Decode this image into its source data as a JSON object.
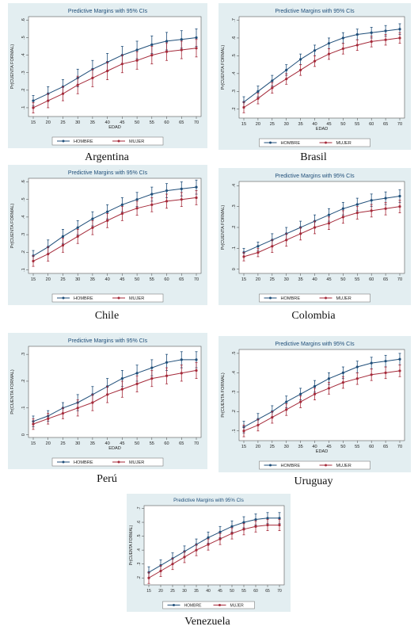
{
  "colors": {
    "frame_bg": "#e3eef1",
    "plot_bg": "#ffffff",
    "hombre": "#1f4e79",
    "mujer": "#a52a3a",
    "title": "#1f4e79"
  },
  "chart_data": [
    {
      "country": "Argentina",
      "type": "line",
      "title": "Predictive Margins with 95% CIs",
      "xlabel": "EDAD",
      "ylabel": "Pr(CUENTA FORMAL)",
      "x": [
        15,
        20,
        25,
        30,
        35,
        40,
        45,
        50,
        55,
        60,
        65,
        70
      ],
      "xticks": [
        "15",
        "20",
        "25",
        "30",
        "35",
        "40",
        "45",
        "50",
        "55",
        "60",
        "65",
        "70"
      ],
      "yticks": [
        0.1,
        0.2,
        0.3,
        0.4,
        0.5,
        0.6
      ],
      "ytick_labels": [
        ".1",
        ".2",
        ".3",
        ".4",
        ".5",
        ".6"
      ],
      "ylim": [
        0.05,
        0.62
      ],
      "series": [
        {
          "name": "HOMBRE",
          "values": [
            0.14,
            0.18,
            0.22,
            0.27,
            0.32,
            0.36,
            0.4,
            0.43,
            0.46,
            0.48,
            0.49,
            0.5
          ],
          "ci": [
            0.03,
            0.04,
            0.04,
            0.05,
            0.05,
            0.05,
            0.05,
            0.05,
            0.05,
            0.05,
            0.05,
            0.05
          ]
        },
        {
          "name": "MUJER",
          "values": [
            0.1,
            0.14,
            0.18,
            0.23,
            0.27,
            0.31,
            0.35,
            0.37,
            0.4,
            0.42,
            0.43,
            0.44
          ],
          "ci": [
            0.03,
            0.04,
            0.04,
            0.05,
            0.05,
            0.05,
            0.05,
            0.05,
            0.05,
            0.05,
            0.05,
            0.05
          ]
        }
      ],
      "legend": [
        "HOMBRE",
        "MUJER"
      ]
    },
    {
      "country": "Brasil",
      "type": "line",
      "title": "Predictive Margins with 95% CIs",
      "xlabel": "EDAD",
      "ylabel": "Pr(CUENTA FORMAL)",
      "x": [
        15,
        20,
        25,
        30,
        35,
        40,
        45,
        50,
        55,
        60,
        65,
        70
      ],
      "xticks": [
        "15",
        "20",
        "25",
        "30",
        "35",
        "40",
        "45",
        "50",
        "55",
        "60",
        "65",
        "70"
      ],
      "yticks": [
        0.2,
        0.3,
        0.4,
        0.5,
        0.6,
        0.7
      ],
      "ytick_labels": [
        ".2",
        ".3",
        ".4",
        ".5",
        ".6",
        ".7"
      ],
      "ylim": [
        0.15,
        0.72
      ],
      "series": [
        {
          "name": "HOMBRE",
          "values": [
            0.24,
            0.3,
            0.36,
            0.42,
            0.48,
            0.53,
            0.57,
            0.6,
            0.62,
            0.63,
            0.64,
            0.65
          ],
          "ci": [
            0.03,
            0.03,
            0.03,
            0.03,
            0.03,
            0.03,
            0.03,
            0.03,
            0.03,
            0.03,
            0.03,
            0.03
          ]
        },
        {
          "name": "MUJER",
          "values": [
            0.21,
            0.26,
            0.32,
            0.37,
            0.42,
            0.47,
            0.51,
            0.54,
            0.56,
            0.58,
            0.59,
            0.6
          ],
          "ci": [
            0.03,
            0.03,
            0.03,
            0.03,
            0.03,
            0.03,
            0.03,
            0.03,
            0.03,
            0.03,
            0.03,
            0.03
          ]
        }
      ],
      "legend": [
        "HOMBRE",
        "MUJER"
      ]
    },
    {
      "country": "Chile",
      "type": "line",
      "title": "Predictive Margins with 95% CIs",
      "xlabel": "",
      "ylabel": "Pr(CUENTA FORMAL)",
      "x": [
        15,
        20,
        25,
        30,
        35,
        40,
        45,
        50,
        55,
        60,
        65,
        70
      ],
      "xticks": [
        "15",
        "20",
        "25",
        "30",
        "35",
        "40",
        "45",
        "50",
        "55",
        "60",
        "65",
        "70"
      ],
      "yticks": [
        0.1,
        0.2,
        0.3,
        0.4,
        0.5,
        0.6
      ],
      "ytick_labels": [
        ".1",
        ".2",
        ".3",
        ".4",
        ".5",
        ".6"
      ],
      "ylim": [
        0.08,
        0.62
      ],
      "series": [
        {
          "name": "HOMBRE",
          "values": [
            0.18,
            0.23,
            0.29,
            0.34,
            0.39,
            0.43,
            0.47,
            0.5,
            0.53,
            0.55,
            0.56,
            0.57
          ],
          "ci": [
            0.03,
            0.04,
            0.04,
            0.04,
            0.04,
            0.04,
            0.04,
            0.04,
            0.04,
            0.04,
            0.04,
            0.04
          ]
        },
        {
          "name": "MUJER",
          "values": [
            0.15,
            0.19,
            0.24,
            0.29,
            0.34,
            0.38,
            0.42,
            0.45,
            0.47,
            0.49,
            0.5,
            0.51
          ],
          "ci": [
            0.03,
            0.04,
            0.04,
            0.04,
            0.04,
            0.04,
            0.04,
            0.04,
            0.04,
            0.04,
            0.04,
            0.04
          ]
        }
      ],
      "legend": [
        "HOMBRE",
        "MUJER"
      ]
    },
    {
      "country": "Colombia",
      "type": "line",
      "title": "Predictive Margins with 95% CIs",
      "xlabel": "",
      "ylabel": "Pr(CUENTA FORMAL)",
      "x": [
        15,
        20,
        25,
        30,
        35,
        40,
        45,
        50,
        55,
        60,
        65,
        70
      ],
      "xticks": [
        "15",
        "20",
        "25",
        "30",
        "35",
        "40",
        "45",
        "50",
        "55",
        "60",
        "65",
        "70"
      ],
      "yticks": [
        0.0,
        0.1,
        0.2,
        0.3,
        0.4
      ],
      "ytick_labels": [
        "0",
        ".1",
        ".2",
        ".3",
        ".4"
      ],
      "ylim": [
        -0.02,
        0.42
      ],
      "series": [
        {
          "name": "HOMBRE",
          "values": [
            0.08,
            0.11,
            0.14,
            0.17,
            0.2,
            0.23,
            0.26,
            0.29,
            0.31,
            0.33,
            0.34,
            0.35
          ],
          "ci": [
            0.02,
            0.02,
            0.03,
            0.03,
            0.03,
            0.03,
            0.03,
            0.03,
            0.03,
            0.03,
            0.03,
            0.03
          ]
        },
        {
          "name": "MUJER",
          "values": [
            0.06,
            0.08,
            0.11,
            0.14,
            0.17,
            0.2,
            0.22,
            0.25,
            0.27,
            0.28,
            0.29,
            0.3
          ],
          "ci": [
            0.02,
            0.02,
            0.03,
            0.03,
            0.03,
            0.03,
            0.03,
            0.03,
            0.03,
            0.03,
            0.03,
            0.03
          ]
        }
      ],
      "legend": [
        "HOMBRE",
        "MUJER"
      ]
    },
    {
      "country": "Perú",
      "type": "line",
      "title": "Predictive Margins with 95% CIs",
      "xlabel": "EDAD",
      "ylabel": "Pr(CUENTA FORMAL)",
      "x": [
        15,
        20,
        25,
        30,
        35,
        40,
        45,
        50,
        55,
        60,
        65,
        70
      ],
      "xticks": [
        "15",
        "20",
        "25",
        "30",
        "35",
        "40",
        "45",
        "50",
        "55",
        "60",
        "65",
        "70"
      ],
      "yticks": [
        0.0,
        0.1,
        0.2,
        0.3
      ],
      "ytick_labels": [
        "0",
        ".1",
        ".2",
        ".3"
      ],
      "ylim": [
        -0.01,
        0.33
      ],
      "series": [
        {
          "name": "HOMBRE",
          "values": [
            0.05,
            0.07,
            0.1,
            0.12,
            0.15,
            0.18,
            0.21,
            0.23,
            0.25,
            0.27,
            0.28,
            0.28
          ],
          "ci": [
            0.02,
            0.02,
            0.02,
            0.03,
            0.03,
            0.03,
            0.03,
            0.03,
            0.03,
            0.03,
            0.03,
            0.03
          ]
        },
        {
          "name": "MUJER",
          "values": [
            0.04,
            0.06,
            0.08,
            0.1,
            0.12,
            0.15,
            0.17,
            0.19,
            0.21,
            0.22,
            0.23,
            0.24
          ],
          "ci": [
            0.02,
            0.02,
            0.02,
            0.03,
            0.03,
            0.03,
            0.03,
            0.03,
            0.03,
            0.03,
            0.03,
            0.03
          ]
        }
      ],
      "legend": [
        "HOMBRE",
        "MUJER"
      ]
    },
    {
      "country": "Uruguay",
      "type": "line",
      "title": "Predictive Margins with 95% CIs",
      "xlabel": "EDAD",
      "ylabel": "Pr(CUENTA FORMAL)",
      "x": [
        15,
        20,
        25,
        30,
        35,
        40,
        45,
        50,
        55,
        60,
        65,
        70
      ],
      "xticks": [
        "15",
        "20",
        "25",
        "30",
        "35",
        "40",
        "45",
        "50",
        "55",
        "60",
        "65",
        "70"
      ],
      "yticks": [
        0.1,
        0.2,
        0.3,
        0.4,
        0.5
      ],
      "ytick_labels": [
        ".1",
        ".2",
        ".3",
        ".4",
        ".5"
      ],
      "ylim": [
        0.05,
        0.52
      ],
      "series": [
        {
          "name": "HOMBRE",
          "values": [
            0.12,
            0.16,
            0.2,
            0.25,
            0.29,
            0.33,
            0.37,
            0.4,
            0.43,
            0.45,
            0.46,
            0.47
          ],
          "ci": [
            0.03,
            0.03,
            0.03,
            0.03,
            0.03,
            0.03,
            0.03,
            0.03,
            0.03,
            0.03,
            0.03,
            0.03
          ]
        },
        {
          "name": "MUJER",
          "values": [
            0.1,
            0.13,
            0.17,
            0.21,
            0.25,
            0.29,
            0.32,
            0.35,
            0.37,
            0.39,
            0.4,
            0.41
          ],
          "ci": [
            0.03,
            0.03,
            0.03,
            0.03,
            0.03,
            0.03,
            0.03,
            0.03,
            0.03,
            0.03,
            0.03,
            0.03
          ]
        }
      ],
      "legend": [
        "HOMBRE",
        "MUJER"
      ]
    },
    {
      "country": "Venezuela",
      "type": "line",
      "title": "Predictive Margins with 95% CIs",
      "xlabel": "",
      "ylabel": "Pr(CUENTA FORMAL)",
      "x": [
        15,
        20,
        25,
        30,
        35,
        40,
        45,
        50,
        55,
        60,
        65,
        70
      ],
      "xticks": [
        "15",
        "20",
        "25",
        "30",
        "35",
        "40",
        "45",
        "50",
        "55",
        "60",
        "65",
        "70"
      ],
      "yticks": [
        0.2,
        0.3,
        0.4,
        0.5,
        0.6,
        0.7
      ],
      "ytick_labels": [
        ".2",
        ".3",
        ".4",
        ".5",
        ".6",
        ".7"
      ],
      "ylim": [
        0.15,
        0.72
      ],
      "series": [
        {
          "name": "HOMBRE",
          "values": [
            0.24,
            0.29,
            0.34,
            0.39,
            0.44,
            0.49,
            0.53,
            0.57,
            0.6,
            0.62,
            0.63,
            0.63
          ],
          "ci": [
            0.04,
            0.04,
            0.04,
            0.04,
            0.04,
            0.04,
            0.04,
            0.04,
            0.04,
            0.04,
            0.04,
            0.04
          ]
        },
        {
          "name": "MUJER",
          "values": [
            0.2,
            0.25,
            0.3,
            0.35,
            0.4,
            0.44,
            0.48,
            0.52,
            0.55,
            0.57,
            0.58,
            0.58
          ],
          "ci": [
            0.04,
            0.04,
            0.04,
            0.04,
            0.04,
            0.04,
            0.04,
            0.04,
            0.04,
            0.04,
            0.04,
            0.04
          ]
        }
      ],
      "legend": [
        "HOMBRE",
        "MUJER"
      ]
    }
  ]
}
